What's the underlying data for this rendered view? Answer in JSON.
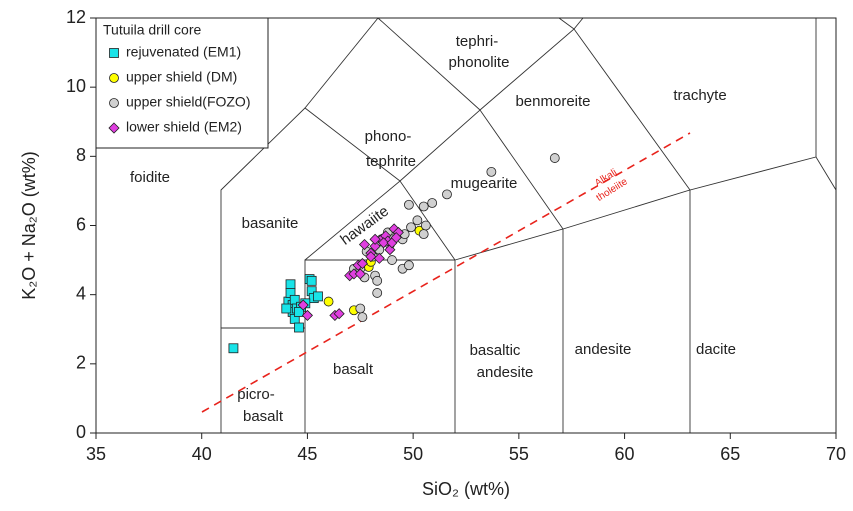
{
  "chart_data": {
    "type": "scatter",
    "x_label": "SiO₂ (wt%)",
    "y_label": "K₂O + Na₂O (wt%)",
    "xlim": [
      35,
      70
    ],
    "ylim": [
      0,
      12
    ],
    "xticks": [
      35,
      40,
      45,
      50,
      55,
      60,
      65,
      70
    ],
    "yticks": [
      0,
      2,
      4,
      6,
      8,
      10,
      12
    ],
    "legend_title": "Tutuila drill core",
    "legend_position": "upper left",
    "field_labels": [
      "foidite",
      "basanite",
      "hawaiite",
      "phono-",
      "tephrite",
      "tephri-",
      "phonolite",
      "benmoreite",
      "mugearite",
      "trachyte",
      "basalt",
      "basaltic",
      "andesite",
      "andesite",
      "dacite",
      "picro-",
      "basalt"
    ],
    "annotations": [
      "Alkali",
      "tholeiite"
    ],
    "series": [
      {
        "name": "rejuvenated (EM1)",
        "color": "#19e3e8",
        "marker": "square",
        "x": [
          41.5,
          44.1,
          44.2,
          44.2,
          44.3,
          44.3,
          44.4,
          44.4,
          44.5,
          44.6,
          44.7,
          44.6,
          45.1,
          45.2,
          45.2,
          45.3,
          45.5,
          44.0,
          44.9
        ],
        "y": [
          2.45,
          3.8,
          4.3,
          4.05,
          3.7,
          3.5,
          3.3,
          3.85,
          3.6,
          3.05,
          3.65,
          3.5,
          4.45,
          4.4,
          4.1,
          3.9,
          3.95,
          3.6,
          3.75
        ]
      },
      {
        "name": "upper shield (DM)",
        "color": "#ffff00",
        "marker": "circle",
        "x": [
          46.0,
          47.2,
          47.9,
          48.0,
          50.3
        ],
        "y": [
          3.8,
          3.55,
          4.8,
          4.95,
          5.85
        ]
      },
      {
        "name": "upper shield(FOZO)",
        "color": "#d0d0d0",
        "marker": "circle",
        "x": [
          47.2,
          47.5,
          47.7,
          47.8,
          48.2,
          48.3,
          48.3,
          48.1,
          48.5,
          48.8,
          49.0,
          49.3,
          49.5,
          49.6,
          49.9,
          49.8,
          50.2,
          50.5,
          50.6,
          50.5,
          50.9,
          51.6,
          53.7,
          56.7,
          49.5,
          49.8,
          48.4,
          49.0,
          47.5,
          47.6,
          48.9
        ],
        "y": [
          4.75,
          4.75,
          4.5,
          5.25,
          4.55,
          4.4,
          4.05,
          5.1,
          5.6,
          5.8,
          5.6,
          5.7,
          5.6,
          5.75,
          5.95,
          6.6,
          6.15,
          6.55,
          6.0,
          5.75,
          6.65,
          6.9,
          7.55,
          7.95,
          4.75,
          4.85,
          5.3,
          5.0,
          3.6,
          3.35,
          5.45
        ]
      },
      {
        "name": "lower shield (EM2)",
        "color": "#e03ee0",
        "marker": "diamond",
        "x": [
          44.8,
          45.0,
          46.3,
          46.5,
          47.0,
          47.2,
          47.4,
          47.6,
          48.0,
          48.2,
          48.5,
          48.7,
          48.8,
          48.9,
          48.6,
          49.0,
          48.2,
          48.4,
          49.1,
          49.3,
          49.2,
          47.7,
          47.5,
          48.0
        ],
        "y": [
          3.7,
          3.4,
          3.4,
          3.45,
          4.55,
          4.6,
          4.85,
          4.9,
          5.2,
          5.4,
          5.6,
          5.7,
          5.55,
          5.3,
          5.5,
          5.5,
          5.6,
          5.05,
          5.9,
          5.8,
          5.65,
          5.45,
          4.6,
          5.1
        ]
      }
    ]
  }
}
